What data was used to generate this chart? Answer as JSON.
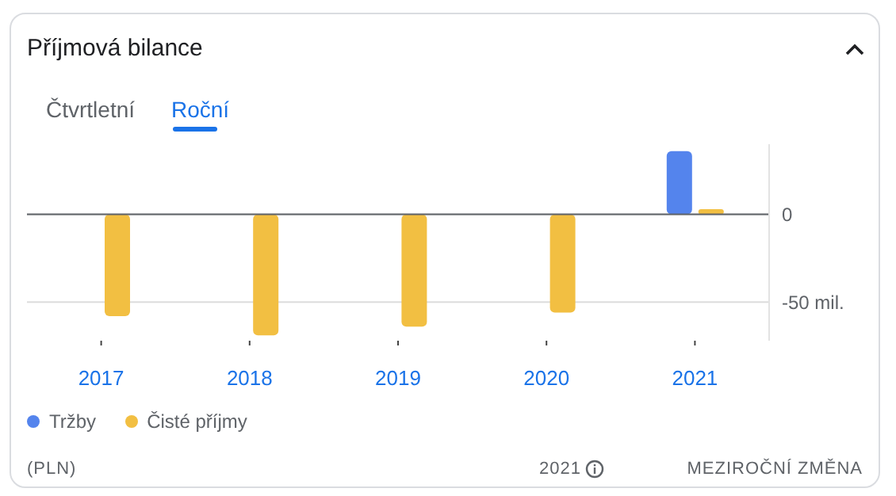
{
  "chart_data": {
    "type": "bar",
    "title": "Příjmová bilance",
    "subtitle": "Roční",
    "annotations": [
      "Čtvrtletní",
      "(PLN)",
      "2021",
      "MEZIROČNÍ ZMĚNA"
    ],
    "categories": [
      "2017",
      "2018",
      "2019",
      "2020",
      "2021"
    ],
    "series": [
      {
        "name": "Tržby",
        "color": "#5484ed",
        "values": [
          null,
          null,
          null,
          null,
          36
        ]
      },
      {
        "name": "Čisté příjmy",
        "color": "#f2bf42",
        "values": [
          -58,
          -69,
          -64,
          -56,
          3
        ]
      }
    ],
    "ylim": [
      -72,
      40
    ],
    "yticks": [
      {
        "value": 0,
        "label": "0"
      },
      {
        "value": -50,
        "label": "-50 mil."
      }
    ],
    "grid": "y",
    "legend": "bottom"
  }
}
